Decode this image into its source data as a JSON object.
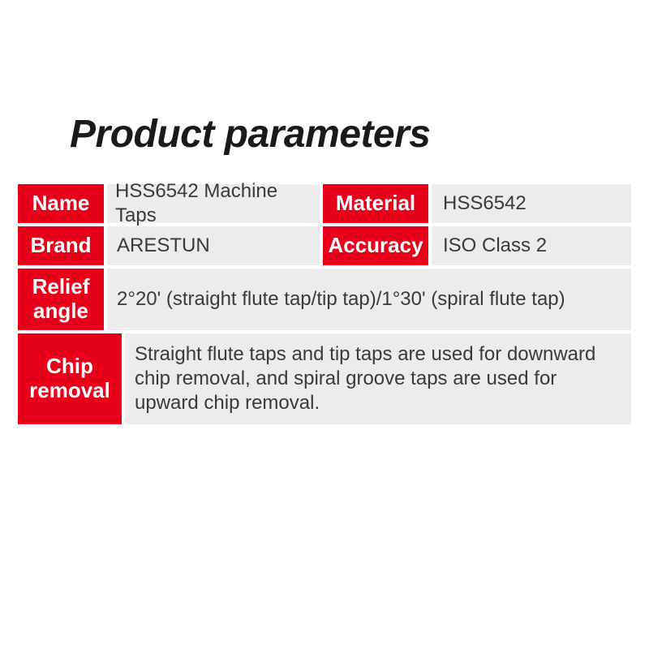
{
  "title": "Product parameters",
  "colors": {
    "label_bg": "#e8001b",
    "label_text": "#ffffff",
    "value_bg": "#ececec",
    "value_text": "#3a3a3a",
    "title_text": "#1a1a1a",
    "page_bg": "#ffffff"
  },
  "typography": {
    "title_fontsize": 48,
    "title_weight": 900,
    "title_italic": true,
    "label_fontsize": 26,
    "label_weight": 700,
    "value_fontsize": 24
  },
  "layout": {
    "row_gap": 4,
    "cell_gap": 4,
    "label_narrow_width": 106,
    "label_mid_width": 128,
    "label_right_width": 130,
    "row_short_height": 48,
    "row_med_height": 76,
    "row_tall_height": 112
  },
  "params": {
    "name": {
      "label": "Name",
      "value": "HSS6542 Machine Taps"
    },
    "material": {
      "label": "Material",
      "value": "HSS6542"
    },
    "brand": {
      "label": "Brand",
      "value": "ARESTUN"
    },
    "accuracy": {
      "label": "Accuracy",
      "value": "ISO Class 2"
    },
    "relief_angle": {
      "label": "Relief angle",
      "value": "2°20' (straight flute tap/tip tap)/1°30' (spiral flute tap)"
    },
    "chip_removal": {
      "label": "Chip removal",
      "value": "Straight flute taps and tip taps are used for downward chip removal, and spiral groove taps are used for upward chip removal."
    }
  }
}
